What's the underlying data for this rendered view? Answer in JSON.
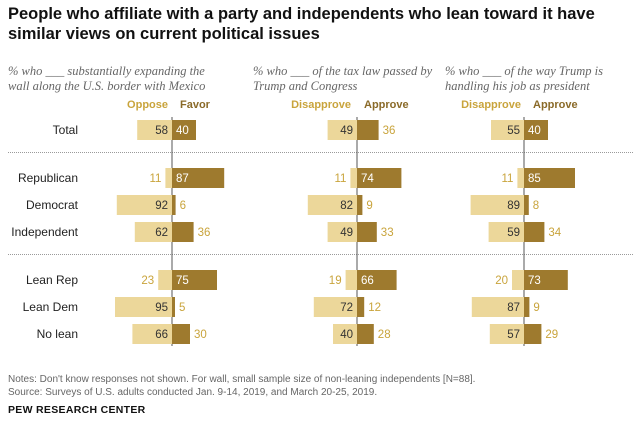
{
  "title": "People who affiliate with a party and independents who lean toward it have similar views on current political issues",
  "colors": {
    "negative": "#ecd79a",
    "positive": "#9e7a2e",
    "neg_text": "#c9a43c",
    "pos_text": "#8a6a28"
  },
  "groups": [
    "Total",
    "Republican",
    "Democrat",
    "Independent",
    "Lean Rep",
    "Lean Dem",
    "No lean"
  ],
  "chart_data": [
    {
      "type": "bar",
      "subtitle": "% who ___ substantially expanding the wall along the U.S. border with Mexico",
      "series": [
        {
          "name": "Oppose",
          "values": [
            58,
            11,
            92,
            62,
            23,
            95,
            66
          ]
        },
        {
          "name": "Favor",
          "values": [
            40,
            87,
            6,
            36,
            75,
            5,
            30
          ]
        }
      ]
    },
    {
      "type": "bar",
      "subtitle": "% who ___ of the tax law passed by Trump and Congress",
      "series": [
        {
          "name": "Disapprove",
          "values": [
            49,
            11,
            82,
            49,
            19,
            72,
            40
          ]
        },
        {
          "name": "Approve",
          "values": [
            36,
            74,
            9,
            33,
            66,
            12,
            28
          ]
        }
      ]
    },
    {
      "type": "bar",
      "subtitle": "% who ___ of the way Trump is handling his job as president",
      "series": [
        {
          "name": "Disapprove",
          "values": [
            55,
            11,
            89,
            59,
            20,
            87,
            57
          ]
        },
        {
          "name": "Approve",
          "values": [
            40,
            85,
            8,
            34,
            73,
            9,
            29
          ]
        }
      ]
    }
  ],
  "notes": {
    "line1": "Notes: Don't know responses not shown. For wall, small sample size of non-leaning independents [N=88].",
    "line2": "Source: Surveys of U.S. adults conducted Jan. 9-14, 2019, and March 20-25, 2019."
  },
  "source_brand": "PEW RESEARCH CENTER"
}
